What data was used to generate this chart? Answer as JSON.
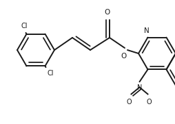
{
  "background_color": "#ffffff",
  "line_color": "#1a1a1a",
  "line_width": 1.4,
  "figsize": [
    2.55,
    1.81
  ],
  "dpi": 100,
  "xlim": [
    0,
    255
  ],
  "ylim": [
    0,
    181
  ]
}
